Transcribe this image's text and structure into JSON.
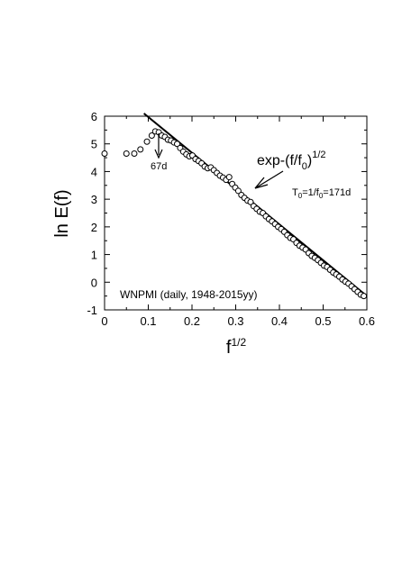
{
  "chart_data": {
    "type": "scatter",
    "xlabel_base": "f",
    "xlabel_exp": "1/2",
    "ylabel": "ln E(f)",
    "xlim": [
      0,
      0.6
    ],
    "ylim": [
      -1,
      6
    ],
    "x_ticks": [
      "0",
      "0.1",
      "0.2",
      "0.3",
      "0.4",
      "0.5",
      "0.6"
    ],
    "y_ticks": [
      "-1",
      "0",
      "1",
      "2",
      "3",
      "4",
      "5",
      "6"
    ],
    "grid": false,
    "legend": "none",
    "dataset_label": "WNPMI  (daily, 1948-2015yy)",
    "fit_label": {
      "base": "exp-(f/f",
      "sub": "0",
      "close": ")",
      "sup": "1/2"
    },
    "period_label": {
      "t": "T",
      "t_sub": "0",
      "mid": "=1/f",
      "f_sub": "0",
      "rest": "=171d"
    },
    "peak_label": "67d",
    "fit_line": {
      "x": [
        0.09,
        0.6
      ],
      "y": [
        6.1,
        -0.5
      ]
    },
    "points": {
      "x": [
        0.0,
        0.05,
        0.068,
        0.082,
        0.097,
        0.108,
        0.116,
        0.124,
        0.131,
        0.138,
        0.145,
        0.152,
        0.159,
        0.166,
        0.173,
        0.18,
        0.187,
        0.194,
        0.201,
        0.208,
        0.215,
        0.222,
        0.229,
        0.236,
        0.243,
        0.25,
        0.257,
        0.264,
        0.271,
        0.278,
        0.285,
        0.292,
        0.299,
        0.306,
        0.313,
        0.32,
        0.327,
        0.334,
        0.341,
        0.348,
        0.355,
        0.362,
        0.369,
        0.376,
        0.383,
        0.39,
        0.397,
        0.404,
        0.411,
        0.418,
        0.425,
        0.432,
        0.439,
        0.446,
        0.453,
        0.46,
        0.467,
        0.474,
        0.481,
        0.488,
        0.495,
        0.502,
        0.509,
        0.516,
        0.523,
        0.53,
        0.537,
        0.544,
        0.551,
        0.558,
        0.565,
        0.572,
        0.579,
        0.586,
        0.593
      ],
      "y": [
        4.65,
        4.65,
        4.65,
        4.8,
        5.08,
        5.3,
        5.45,
        5.42,
        5.3,
        5.25,
        5.15,
        5.12,
        5.05,
        5.0,
        4.85,
        4.72,
        4.62,
        4.55,
        4.58,
        4.45,
        4.38,
        4.3,
        4.18,
        4.12,
        4.15,
        4.05,
        3.95,
        3.85,
        3.78,
        3.7,
        3.8,
        3.55,
        3.42,
        3.3,
        3.15,
        3.05,
        2.95,
        2.9,
        2.75,
        2.65,
        2.55,
        2.5,
        2.38,
        2.28,
        2.2,
        2.1,
        2.0,
        1.92,
        1.82,
        1.7,
        1.6,
        1.55,
        1.42,
        1.32,
        1.25,
        1.18,
        1.05,
        0.95,
        0.88,
        0.8,
        0.7,
        0.6,
        0.55,
        0.45,
        0.35,
        0.28,
        0.2,
        0.1,
        0.02,
        -0.05,
        -0.15,
        -0.25,
        -0.35,
        -0.45,
        -0.5
      ]
    }
  }
}
